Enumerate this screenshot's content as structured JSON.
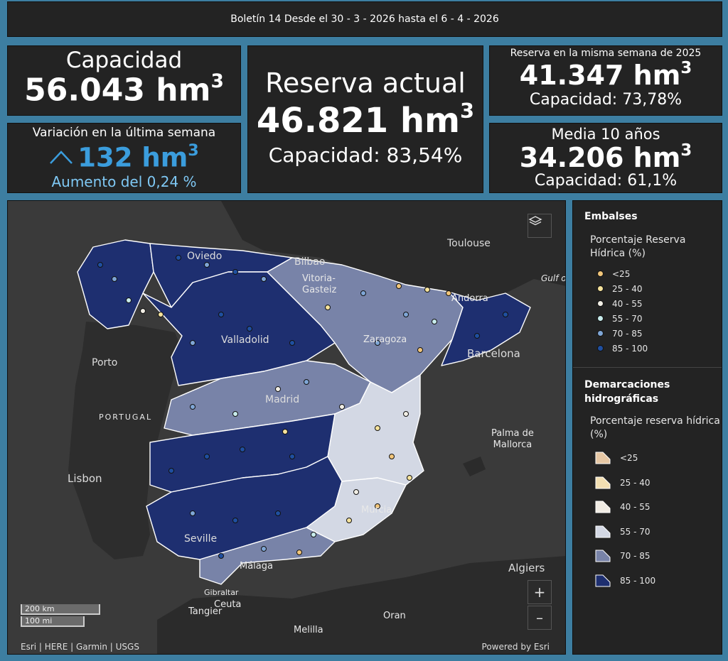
{
  "header": {
    "bulletin": "Boletín 14 Desde el 30 - 3 - 2026 hasta el 6 - 4 - 2026"
  },
  "capacity": {
    "title": "Capacidad",
    "value": "56.043 hm",
    "unit_sup": "3"
  },
  "variation": {
    "title": "Variación en la última semana",
    "value": "132 hm",
    "unit_sup": "3",
    "subtitle": "Aumento del 0,24 %",
    "trend": "up-chevron-icon"
  },
  "current": {
    "title": "Reserva actual",
    "value": "46.821 hm",
    "unit_sup": "3",
    "capacity": "Capacidad: 83,54%"
  },
  "same_week": {
    "title": "Reserva en la misma semana de 2025",
    "value": "41.347 hm",
    "unit_sup": "3",
    "capacity": "Capacidad: 73,78%"
  },
  "avg10": {
    "title": "Media 10 años",
    "value": "34.206 hm",
    "unit_sup": "3",
    "capacity": "Capacidad: 61,1%"
  },
  "map": {
    "labels": {
      "toulouse": "Toulouse",
      "oviedo": "Oviedo",
      "bilbao": "Bilbao",
      "vitoria": "Vitoria-\nGasteiz",
      "andorra": "Andorra",
      "gulf": "Gulf o",
      "valladolid": "Valladolid",
      "zaragoza": "Zaragoza",
      "barcelona": "Barcelona",
      "porto": "Porto",
      "portugal": "PORTUGAL",
      "madrid": "Madrid",
      "palma": "Palma de\nMallorca",
      "lisbon": "Lisbon",
      "murcia": "Murcia",
      "seville": "Seville",
      "malaga": "Málaga",
      "algiers": "Algiers",
      "gibraltar": "Gibraltar",
      "ceuta": "Ceuta",
      "tangier": "Tangier",
      "oran": "Oran",
      "melilla": "Melilla"
    },
    "scale_km": "200 km",
    "scale_mi": "100 mi",
    "attribution": "Esri | HERE | Garmin | USGS",
    "powered_by": "Powered by Esri",
    "zoom_in": "+",
    "zoom_out": "–",
    "layers_icon": "layers-icon"
  },
  "legend": {
    "section1_title": "Embalses",
    "section1_subtitle": "Porcentaje Reserva Hídrica (%)",
    "points": [
      {
        "label": "<25",
        "color": "#f2c67a"
      },
      {
        "label": "25 - 40",
        "color": "#f6e39c"
      },
      {
        "label": "40 - 55",
        "color": "#f2efe6"
      },
      {
        "label": "55 - 70",
        "color": "#c8ecec"
      },
      {
        "label": "70 - 85",
        "color": "#7fa6d6"
      },
      {
        "label": "85 - 100",
        "color": "#1f4fa0"
      }
    ],
    "section2_title": "Demarcaciones hidrográficas",
    "section2_subtitle": "Porcentaje reserva hídrica (%)",
    "areas": [
      {
        "label": "<25",
        "color": "#e6c7a4"
      },
      {
        "label": "25 - 40",
        "color": "#f2dfb2"
      },
      {
        "label": "40 - 55",
        "color": "#f1ece4"
      },
      {
        "label": "55 - 70",
        "color": "#d3d8e4"
      },
      {
        "label": "70 - 85",
        "color": "#7883a8"
      },
      {
        "label": "85 - 100",
        "color": "#1e2f70"
      }
    ]
  }
}
